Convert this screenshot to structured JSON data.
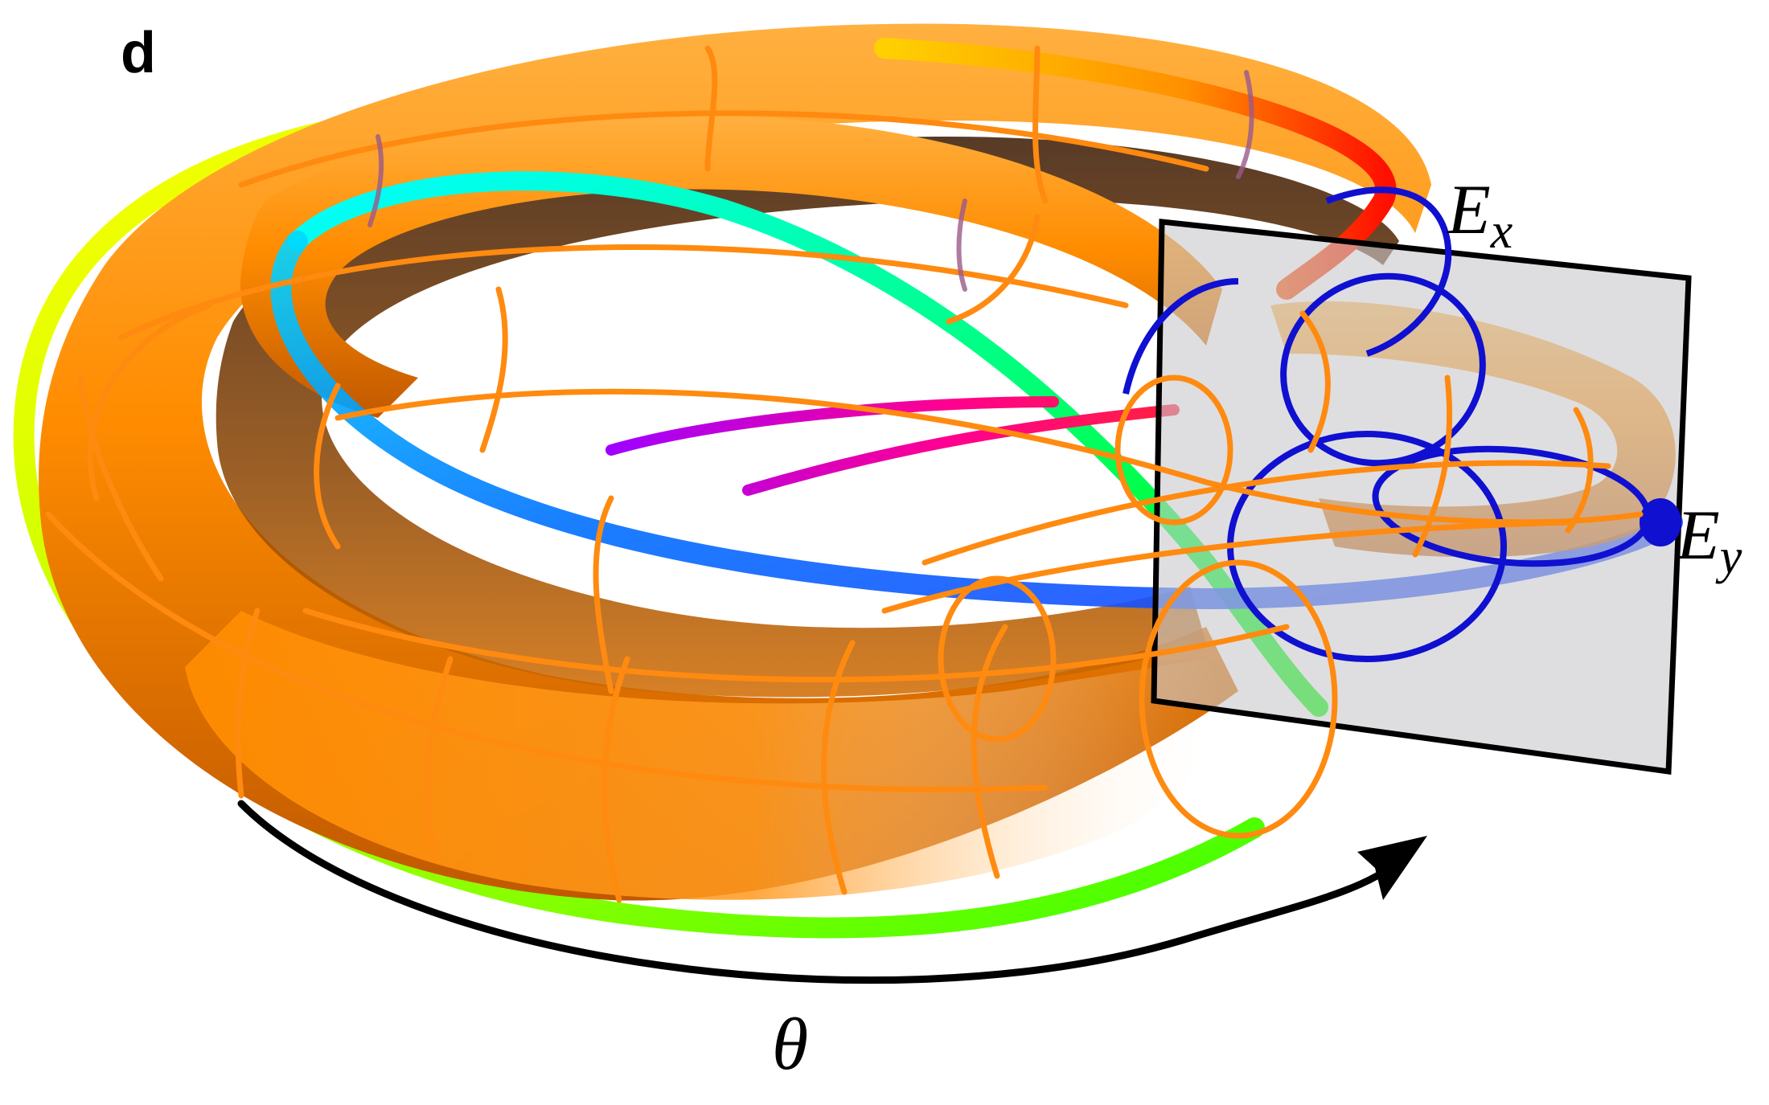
{
  "figure": {
    "panel_label": "d",
    "labels": {
      "ex_main": "E",
      "ex_sub": "x",
      "ey_main": "E",
      "ey_sub": "y",
      "theta": "θ"
    }
  },
  "colors": {
    "torus_body": "#ff8c00",
    "torus_light": "#ffa41f",
    "torus_shadow": "#5a2a00",
    "wireframe": "#ff8a10",
    "wireframe_back": "#9a5a8a",
    "section_curve": "#1010d0",
    "plane_fill": "#c8c8cc",
    "plane_edge": "#000000",
    "arrow": "#000000",
    "hue_band": [
      "#ffff00",
      "#80ff00",
      "#00ff80",
      "#00ffff",
      "#0080ff",
      "#8000ff",
      "#ff0080",
      "#ff2000"
    ]
  }
}
